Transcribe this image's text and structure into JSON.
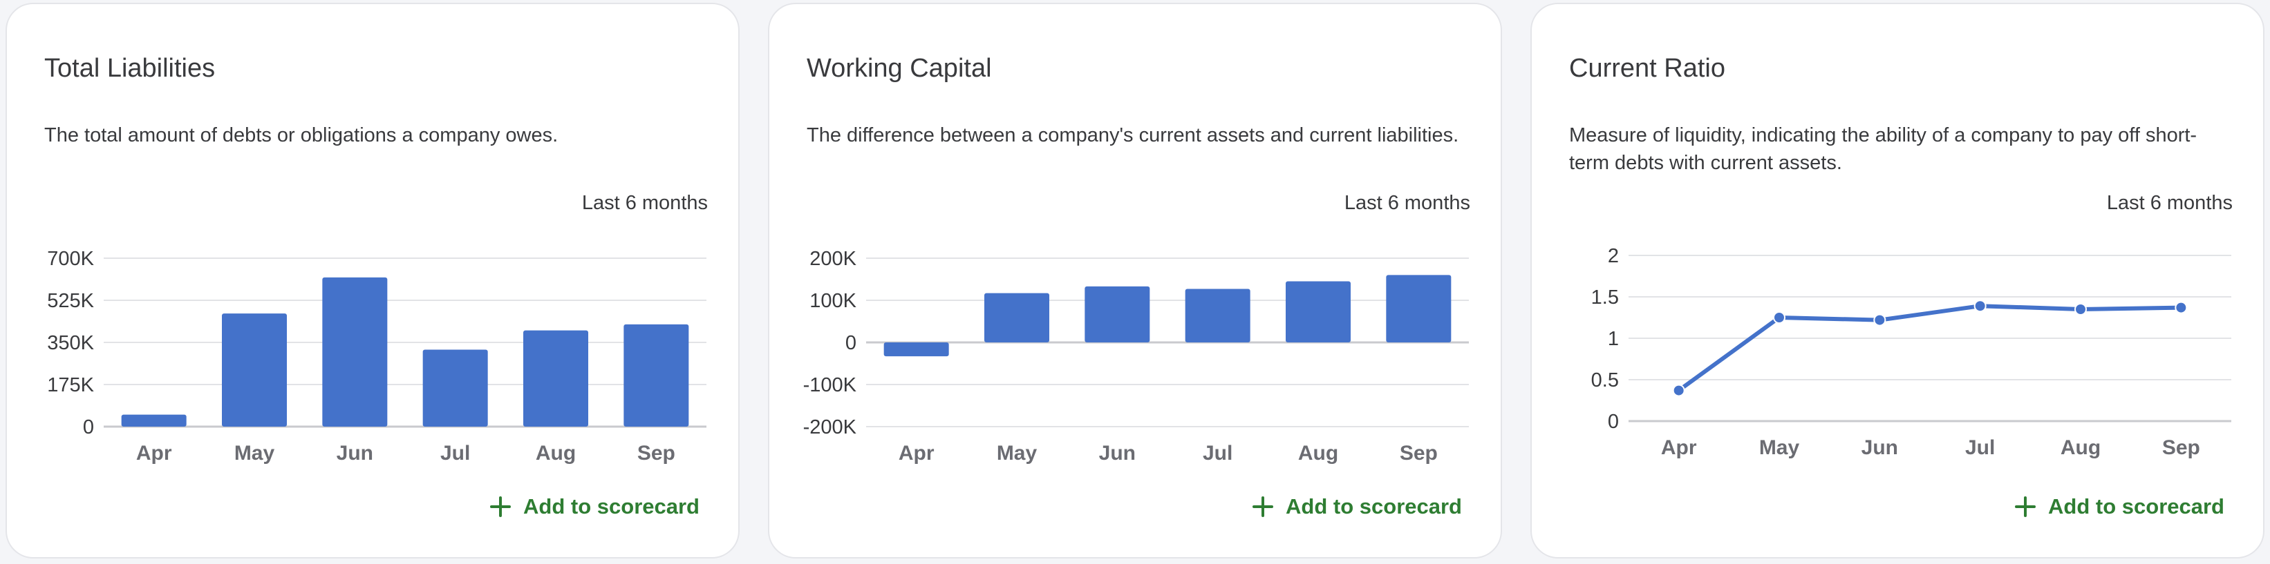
{
  "colors": {
    "bar": "#4472ca",
    "line": "#4472ca",
    "grid": "#e2e3e6",
    "baseline": "#c9cace",
    "add_button": "#2e7d32"
  },
  "cards": [
    {
      "title": "Total Liabilities",
      "description": "The total amount of debts or obligations a company owes.",
      "period": "Last 6 months",
      "add_label": "Add to scorecard",
      "add_icon": "plus-icon"
    },
    {
      "title": "Working Capital",
      "description": "The difference between a company's current assets and current liabilities.",
      "period": "Last 6 months",
      "add_label": "Add to scorecard",
      "add_icon": "plus-icon"
    },
    {
      "title": "Current Ratio",
      "description": "Measure of liquidity, indicating the ability of a company to pay off short-term debts with current assets.",
      "period": "Last 6 months",
      "add_label": "Add to scorecard",
      "add_icon": "plus-icon"
    }
  ],
  "chart_data": [
    {
      "type": "bar",
      "categories": [
        "Apr",
        "May",
        "Jun",
        "Jul",
        "Aug",
        "Sep"
      ],
      "values": [
        50000,
        470000,
        620000,
        320000,
        400000,
        425000
      ],
      "ylim": [
        0,
        700000
      ],
      "yticks": [
        0,
        175000,
        350000,
        525000,
        700000
      ],
      "ytick_labels": [
        "0",
        "175K",
        "350K",
        "525K",
        "700K"
      ],
      "grid": true,
      "legend": "none"
    },
    {
      "type": "bar",
      "categories": [
        "Apr",
        "May",
        "Jun",
        "Jul",
        "Aug",
        "Sep"
      ],
      "values": [
        -33000,
        117000,
        133000,
        127000,
        145000,
        160000
      ],
      "ylim": [
        -200000,
        200000
      ],
      "yticks": [
        -200000,
        -100000,
        0,
        100000,
        200000
      ],
      "ytick_labels": [
        "-200K",
        "-100K",
        "0",
        "100K",
        "200K"
      ],
      "grid": true,
      "legend": "none"
    },
    {
      "type": "line",
      "categories": [
        "Apr",
        "May",
        "Jun",
        "Jul",
        "Aug",
        "Sep"
      ],
      "values": [
        0.37,
        1.25,
        1.22,
        1.39,
        1.35,
        1.37
      ],
      "ylim": [
        0,
        2
      ],
      "yticks": [
        0,
        0.5,
        1,
        1.5,
        2
      ],
      "ytick_labels": [
        "0",
        "0.5",
        "1",
        "1.5",
        "2"
      ],
      "grid": true,
      "legend": "none"
    }
  ]
}
